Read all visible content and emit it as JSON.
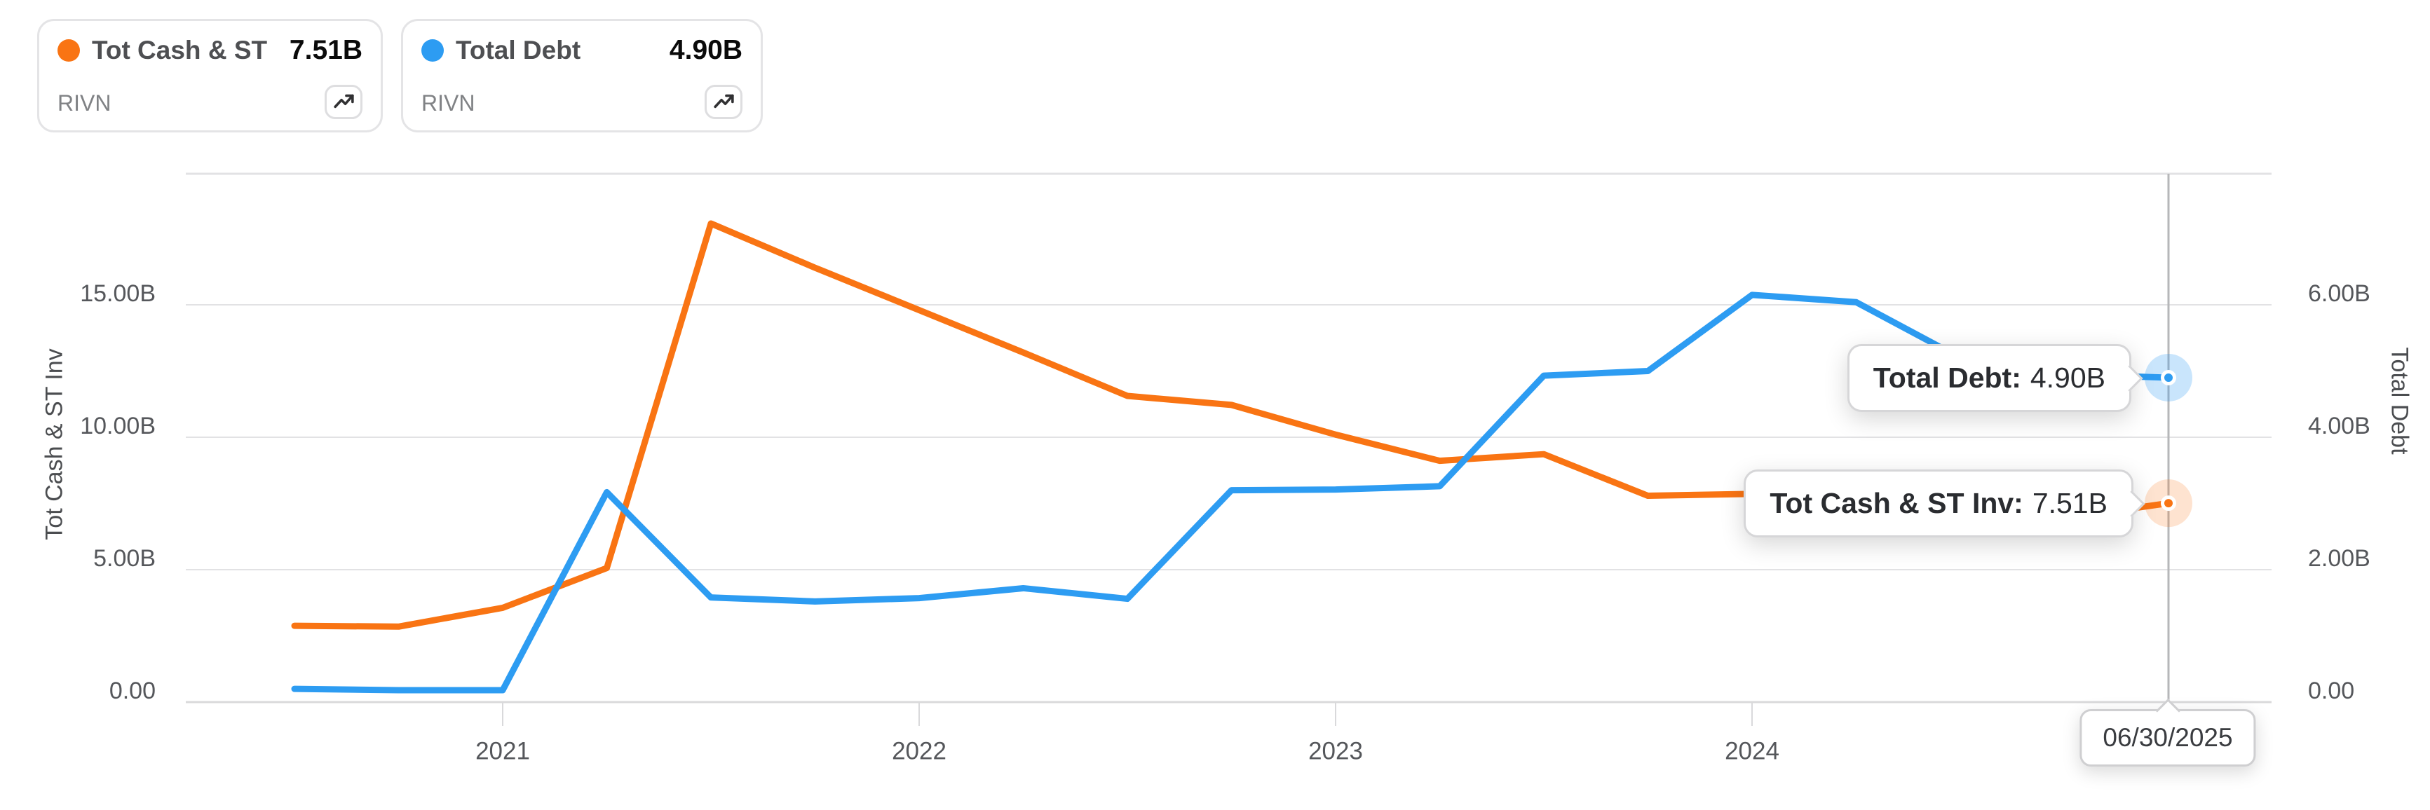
{
  "page": {
    "background": "#ffffff",
    "ticker": "RIVN"
  },
  "legend_cards": [
    {
      "label": "Tot Cash & ST I...",
      "value": "7.51B",
      "ticker": "RIVN",
      "dot_color": "#f97413",
      "icon": "trending-up-icon"
    },
    {
      "label": "Total Debt",
      "value": "4.90B",
      "ticker": "RIVN",
      "dot_color": "#2d9cf2",
      "icon": "trending-up-icon"
    }
  ],
  "chart_data": {
    "type": "line",
    "title": "",
    "x_dates": [
      "06/30/2020",
      "09/30/2020",
      "12/31/2020",
      "03/31/2021",
      "06/30/2021",
      "09/30/2021",
      "12/31/2021",
      "03/31/2022",
      "06/30/2022",
      "09/30/2022",
      "12/31/2022",
      "03/31/2023",
      "06/30/2023",
      "09/30/2023",
      "12/31/2023",
      "03/31/2024",
      "06/30/2024",
      "09/30/2024",
      "06/30/2025"
    ],
    "x_tick_labels": [
      "2021",
      "2022",
      "2023",
      "2024"
    ],
    "x_tick_indices": [
      2,
      6,
      10,
      14
    ],
    "series": [
      {
        "name": "Tot Cash & ST Inv",
        "ticker": "RIVN",
        "axis": "left",
        "unit": "B",
        "color": "#f97413",
        "halo": "rgba(249,116,19,0.20)",
        "values": [
          2.88,
          2.85,
          3.56,
          5.06,
          18.07,
          16.4,
          14.8,
          13.2,
          11.56,
          11.22,
          10.1,
          9.11,
          9.36,
          7.79,
          7.86,
          7.1,
          6.9,
          6.95,
          7.51
        ],
        "last_value_label": "7.51B"
      },
      {
        "name": "Total Debt",
        "ticker": "RIVN",
        "axis": "right",
        "unit": "B",
        "color": "#2d9cf2",
        "halo": "rgba(45,156,242,0.26)",
        "values": [
          0.2,
          0.18,
          0.18,
          3.17,
          1.58,
          1.52,
          1.57,
          1.72,
          1.56,
          3.2,
          3.21,
          3.26,
          4.93,
          5.0,
          6.15,
          6.04,
          5.2,
          4.95,
          4.9
        ],
        "last_value_label": "4.90B"
      }
    ],
    "left_axis": {
      "title": "Tot Cash & ST Inv",
      "tick_labels": [
        "0.00",
        "5.00B",
        "10.00B",
        "15.00B"
      ],
      "tick_values": [
        0,
        5,
        10,
        15
      ],
      "max": 19.9
    },
    "right_axis": {
      "title": "Total Debt",
      "tick_labels": [
        "0.00",
        "2.00B",
        "4.00B",
        "6.00B"
      ],
      "tick_values": [
        0,
        2,
        4,
        6
      ],
      "max": 7.98
    },
    "grid": "horizontal",
    "legend_position": "top-left-cards"
  },
  "crosshair": {
    "date_label": "06/30/2025",
    "x_index": 18,
    "tooltips": [
      {
        "series": "Total Debt",
        "label": "Total Debt:",
        "value": "4.90B"
      },
      {
        "series": "Tot Cash & ST Inv",
        "label": "Tot Cash & ST Inv:",
        "value": "7.51B"
      }
    ]
  },
  "colors": {
    "orange": "#f97413",
    "blue": "#2d9cf2",
    "gridline": "#e2e2e4",
    "axis_line": "#d9d9db",
    "crosshair": "#b6b7b9",
    "tick_text": "#55575b",
    "axis_title_text": "#4b4d50",
    "tooltip_border": "#d6d6d8",
    "tooltip_text": "#2a2c30",
    "legend_border": "#e4e4e6",
    "legend_label": "#4e4f52",
    "legend_value": "#0a0a0a",
    "ticker_text": "#808285"
  }
}
